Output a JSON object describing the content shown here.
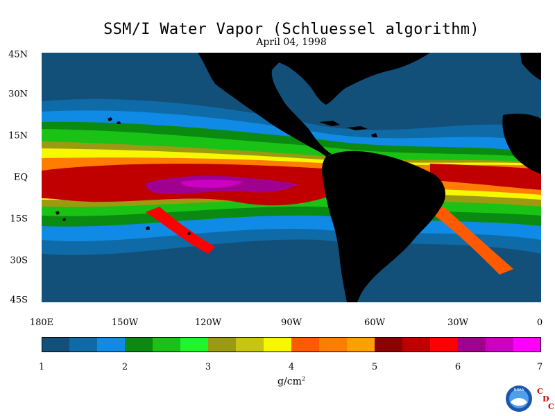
{
  "header": {
    "title": "SSM/I Water Vapor (Schluessel algorithm)",
    "date": "April 04, 1998"
  },
  "map": {
    "lat_labels": [
      "45N",
      "30N",
      "15N",
      "EQ",
      "15S",
      "30S",
      "45S"
    ],
    "lon_labels": [
      "180E",
      "150W",
      "120W",
      "90W",
      "60W",
      "30W",
      "0"
    ],
    "land_color": "#000000"
  },
  "colorbar": {
    "ticks": [
      "1",
      "2",
      "3",
      "4",
      "5",
      "6",
      "7"
    ],
    "units": "g/cm",
    "units_sup": "2",
    "colors": [
      "#12507a",
      "#0f6aa8",
      "#0f8be6",
      "#0a8a10",
      "#19c214",
      "#20f52a",
      "#9c9a10",
      "#c7c512",
      "#f7f700",
      "#ff5a00",
      "#ff7d00",
      "#ffa000",
      "#8c0000",
      "#c00000",
      "#ff0000",
      "#a00090",
      "#cc00c4",
      "#ff00ff"
    ]
  },
  "logo": {
    "noaa_text": "NOAA",
    "cdc_letters": [
      "C",
      "D",
      "C"
    ],
    "accent": "#d00000"
  }
}
